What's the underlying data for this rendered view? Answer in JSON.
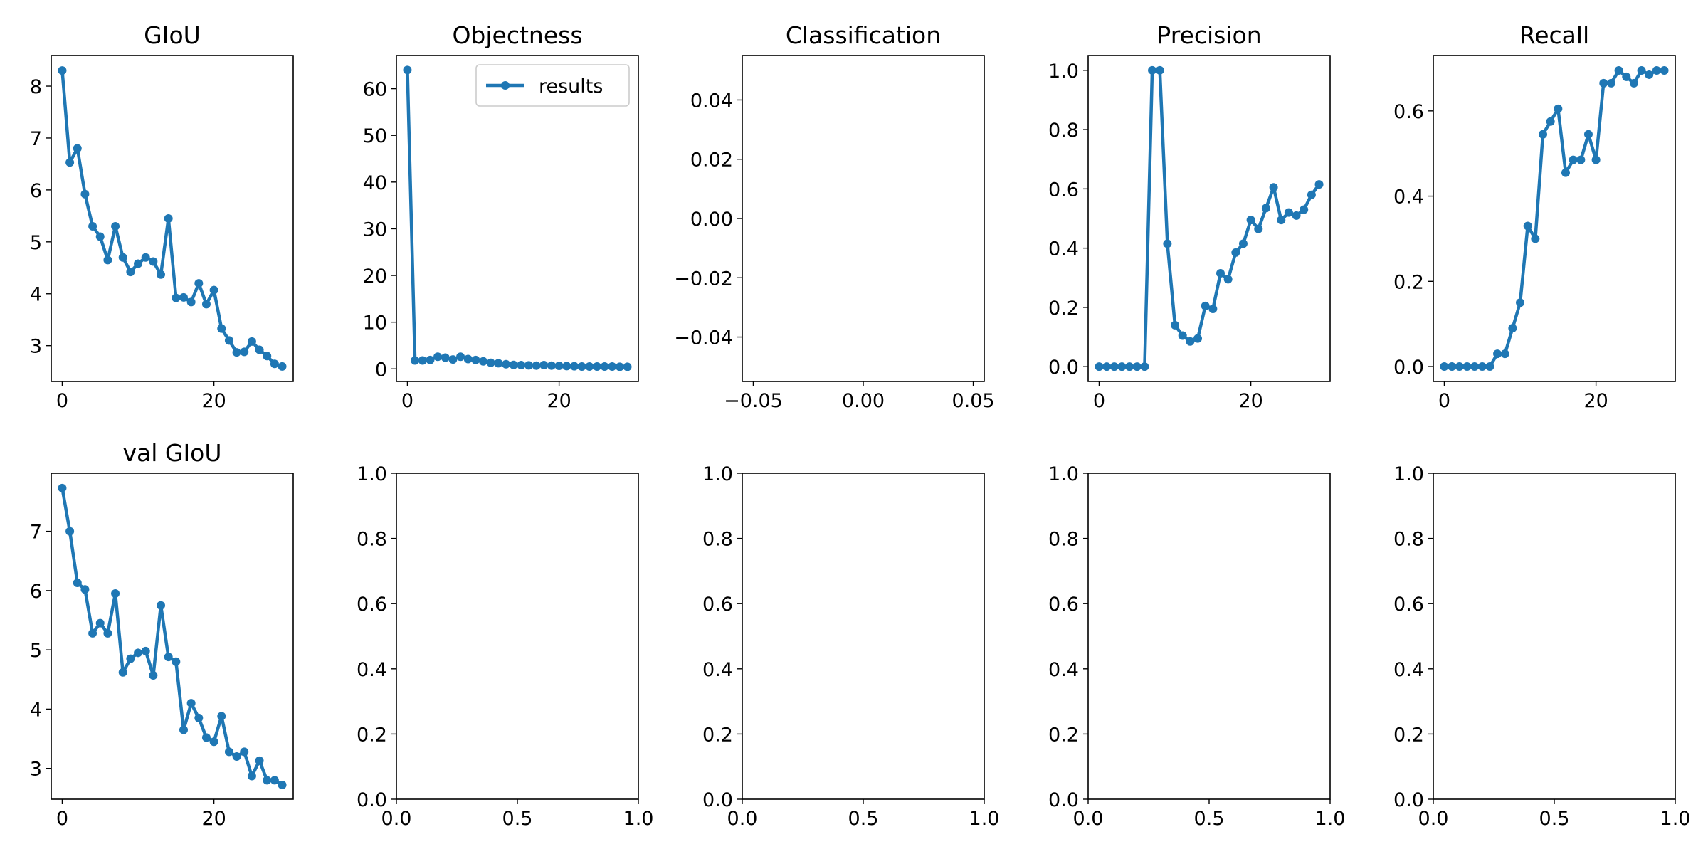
{
  "figure": {
    "background": "#ffffff",
    "series_color": "#1f77b4"
  },
  "chart_data": [
    {
      "type": "line",
      "title": "GIoU",
      "x": [
        0,
        1,
        2,
        3,
        4,
        5,
        6,
        7,
        8,
        9,
        10,
        11,
        12,
        13,
        14,
        15,
        16,
        17,
        18,
        19,
        20,
        21,
        22,
        23,
        24,
        25,
        26,
        27,
        28,
        29
      ],
      "series": [
        {
          "name": "",
          "values": [
            8.3,
            6.53,
            6.8,
            5.92,
            5.3,
            5.1,
            4.65,
            5.3,
            4.7,
            4.42,
            4.58,
            4.7,
            4.62,
            4.37,
            5.45,
            3.92,
            3.93,
            3.84,
            4.2,
            3.8,
            4.07,
            3.33,
            3.1,
            2.87,
            2.88,
            3.08,
            2.92,
            2.8,
            2.65,
            2.6
          ]
        }
      ],
      "xlim": [
        -1.45,
        30.45
      ],
      "ylim": [
        2.31,
        8.59
      ],
      "xticks": [
        0,
        20
      ],
      "xtick_labels": [
        "0",
        "20"
      ],
      "yticks": [
        3,
        4,
        5,
        6,
        7,
        8
      ],
      "ytick_labels": [
        "3",
        "4",
        "5",
        "6",
        "7",
        "8"
      ],
      "xlabel": "",
      "ylabel": "",
      "legend": false
    },
    {
      "type": "line",
      "title": "Objectness",
      "x": [
        0,
        1,
        2,
        3,
        4,
        5,
        6,
        7,
        8,
        9,
        10,
        11,
        12,
        13,
        14,
        15,
        16,
        17,
        18,
        19,
        20,
        21,
        22,
        23,
        24,
        25,
        26,
        27,
        28,
        29
      ],
      "series": [
        {
          "name": "results",
          "values": [
            64,
            1.8,
            1.8,
            1.9,
            2.6,
            2.4,
            2.0,
            2.6,
            2.1,
            1.9,
            1.6,
            1.3,
            1.2,
            1.0,
            0.85,
            0.8,
            0.75,
            0.7,
            0.8,
            0.7,
            0.65,
            0.6,
            0.55,
            0.5,
            0.5,
            0.5,
            0.5,
            0.5,
            0.45,
            0.45
          ]
        }
      ],
      "xlim": [
        -1.45,
        30.45
      ],
      "ylim": [
        -2.7,
        67.1
      ],
      "xticks": [
        0,
        20
      ],
      "xtick_labels": [
        "0",
        "20"
      ],
      "yticks": [
        0,
        10,
        20,
        30,
        40,
        50,
        60
      ],
      "ytick_labels": [
        "0",
        "10",
        "20",
        "30",
        "40",
        "50",
        "60"
      ],
      "xlabel": "",
      "ylabel": "",
      "legend": true,
      "legend_position": "upper right"
    },
    {
      "type": "line",
      "title": "Classification",
      "x": [],
      "series": [],
      "xlim": [
        -0.055,
        0.055
      ],
      "ylim": [
        -0.055,
        0.055
      ],
      "xticks": [
        -0.05,
        0,
        0.05
      ],
      "xtick_labels": [
        "−0.05",
        "0.00",
        "0.05"
      ],
      "yticks": [
        -0.04,
        -0.02,
        0,
        0.02,
        0.04
      ],
      "ytick_labels": [
        "−0.04",
        "−0.02",
        "0.00",
        "0.02",
        "0.04"
      ],
      "xlabel": "",
      "ylabel": "",
      "legend": false
    },
    {
      "type": "line",
      "title": "Precision",
      "x": [
        0,
        1,
        2,
        3,
        4,
        5,
        6,
        7,
        8,
        9,
        10,
        11,
        12,
        13,
        14,
        15,
        16,
        17,
        18,
        19,
        20,
        21,
        22,
        23,
        24,
        25,
        26,
        27,
        28,
        29
      ],
      "series": [
        {
          "name": "",
          "values": [
            0,
            0,
            0,
            0,
            0,
            0,
            0,
            1.0,
            1.0,
            0.415,
            0.14,
            0.105,
            0.085,
            0.095,
            0.205,
            0.195,
            0.315,
            0.295,
            0.385,
            0.415,
            0.495,
            0.465,
            0.535,
            0.605,
            0.495,
            0.52,
            0.51,
            0.53,
            0.58,
            0.615
          ]
        }
      ],
      "xlim": [
        -1.45,
        30.45
      ],
      "ylim": [
        -0.05,
        1.05
      ],
      "xticks": [
        0,
        20
      ],
      "xtick_labels": [
        "0",
        "20"
      ],
      "yticks": [
        0,
        0.2,
        0.4,
        0.6,
        0.8,
        1.0
      ],
      "ytick_labels": [
        "0.0",
        "0.2",
        "0.4",
        "0.6",
        "0.8",
        "1.0"
      ],
      "xlabel": "",
      "ylabel": "",
      "legend": false
    },
    {
      "type": "line",
      "title": "Recall",
      "x": [
        0,
        1,
        2,
        3,
        4,
        5,
        6,
        7,
        8,
        9,
        10,
        11,
        12,
        13,
        14,
        15,
        16,
        17,
        18,
        19,
        20,
        21,
        22,
        23,
        24,
        25,
        26,
        27,
        28,
        29
      ],
      "series": [
        {
          "name": "",
          "values": [
            0,
            0,
            0,
            0,
            0,
            0,
            0,
            0.03,
            0.03,
            0.09,
            0.15,
            0.33,
            0.3,
            0.545,
            0.575,
            0.605,
            0.455,
            0.485,
            0.485,
            0.545,
            0.485,
            0.665,
            0.665,
            0.695,
            0.68,
            0.665,
            0.695,
            0.685,
            0.695,
            0.695
          ]
        }
      ],
      "xlim": [
        -1.45,
        30.45
      ],
      "ylim": [
        -0.035,
        0.73
      ],
      "xticks": [
        0,
        20
      ],
      "xtick_labels": [
        "0",
        "20"
      ],
      "yticks": [
        0,
        0.2,
        0.4,
        0.6
      ],
      "ytick_labels": [
        "0.0",
        "0.2",
        "0.4",
        "0.6"
      ],
      "xlabel": "",
      "ylabel": "",
      "legend": false
    },
    {
      "type": "line",
      "title": "val GIoU",
      "x": [
        0,
        1,
        2,
        3,
        4,
        5,
        6,
        7,
        8,
        9,
        10,
        11,
        12,
        13,
        14,
        15,
        16,
        17,
        18,
        19,
        20,
        21,
        22,
        23,
        24,
        25,
        26,
        27,
        28,
        29
      ],
      "series": [
        {
          "name": "",
          "values": [
            7.73,
            7.0,
            6.13,
            6.02,
            5.28,
            5.45,
            5.28,
            5.95,
            4.62,
            4.85,
            4.95,
            4.98,
            4.57,
            5.75,
            4.88,
            4.8,
            3.65,
            4.1,
            3.85,
            3.52,
            3.45,
            3.88,
            3.28,
            3.2,
            3.28,
            2.87,
            3.13,
            2.8,
            2.8,
            2.72
          ]
        }
      ],
      "xlim": [
        -1.45,
        30.45
      ],
      "ylim": [
        2.48,
        7.98
      ],
      "xticks": [
        0,
        20
      ],
      "xtick_labels": [
        "0",
        "20"
      ],
      "yticks": [
        3,
        4,
        5,
        6,
        7
      ],
      "ytick_labels": [
        "3",
        "4",
        "5",
        "6",
        "7"
      ],
      "xlabel": "",
      "ylabel": "",
      "legend": false
    },
    {
      "type": "line",
      "title": "",
      "x": [],
      "series": [],
      "xlim": [
        0,
        1
      ],
      "ylim": [
        0,
        1
      ],
      "xticks": [
        0,
        0.5,
        1
      ],
      "xtick_labels": [
        "0.0",
        "0.5",
        "1.0"
      ],
      "yticks": [
        0,
        0.2,
        0.4,
        0.6,
        0.8,
        1.0
      ],
      "ytick_labels": [
        "0.0",
        "0.2",
        "0.4",
        "0.6",
        "0.8",
        "1.0"
      ],
      "xlabel": "",
      "ylabel": "",
      "legend": false
    },
    {
      "type": "line",
      "title": "",
      "x": [],
      "series": [],
      "xlim": [
        0,
        1
      ],
      "ylim": [
        0,
        1
      ],
      "xticks": [
        0,
        0.5,
        1
      ],
      "xtick_labels": [
        "0.0",
        "0.5",
        "1.0"
      ],
      "yticks": [
        0,
        0.2,
        0.4,
        0.6,
        0.8,
        1.0
      ],
      "ytick_labels": [
        "0.0",
        "0.2",
        "0.4",
        "0.6",
        "0.8",
        "1.0"
      ],
      "xlabel": "",
      "ylabel": "",
      "legend": false
    },
    {
      "type": "line",
      "title": "",
      "x": [],
      "series": [],
      "xlim": [
        0,
        1
      ],
      "ylim": [
        0,
        1
      ],
      "xticks": [
        0,
        0.5,
        1
      ],
      "xtick_labels": [
        "0.0",
        "0.5",
        "1.0"
      ],
      "yticks": [
        0,
        0.2,
        0.4,
        0.6,
        0.8,
        1.0
      ],
      "ytick_labels": [
        "0.0",
        "0.2",
        "0.4",
        "0.6",
        "0.8",
        "1.0"
      ],
      "xlabel": "",
      "ylabel": "",
      "legend": false
    },
    {
      "type": "line",
      "title": "",
      "x": [],
      "series": [],
      "xlim": [
        0,
        1
      ],
      "ylim": [
        0,
        1
      ],
      "xticks": [
        0,
        0.5,
        1
      ],
      "xtick_labels": [
        "0.0",
        "0.5",
        "1.0"
      ],
      "yticks": [
        0,
        0.2,
        0.4,
        0.6,
        0.8,
        1.0
      ],
      "ytick_labels": [
        "0.0",
        "0.2",
        "0.4",
        "0.6",
        "0.8",
        "1.0"
      ],
      "xlabel": "",
      "ylabel": "",
      "legend": false
    }
  ]
}
